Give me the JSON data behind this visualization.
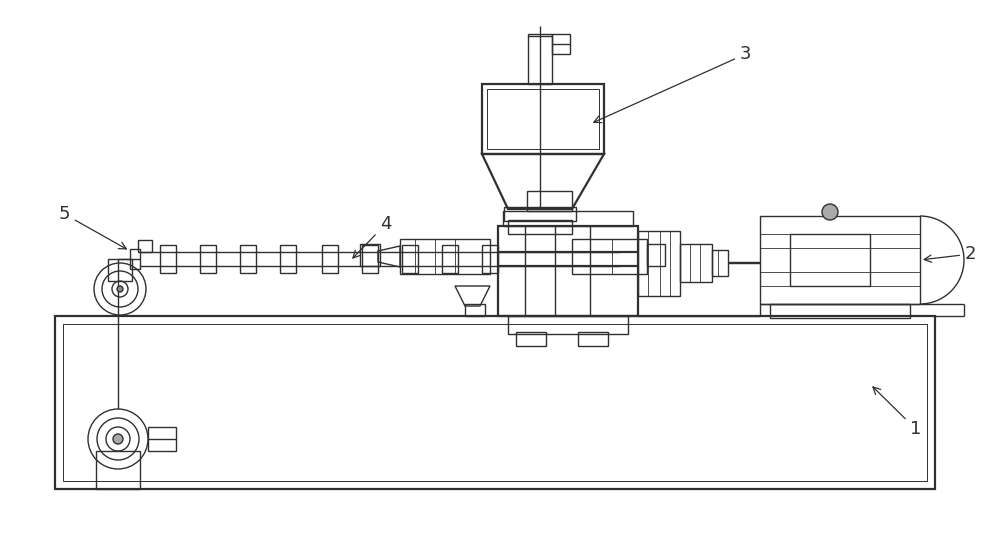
{
  "bg_color": "#ffffff",
  "lc": "#303030",
  "lw": 1.0,
  "lwt": 1.6,
  "lwthin": 0.6,
  "figsize": [
    10.0,
    5.44
  ],
  "dpi": 100,
  "fs": 13
}
